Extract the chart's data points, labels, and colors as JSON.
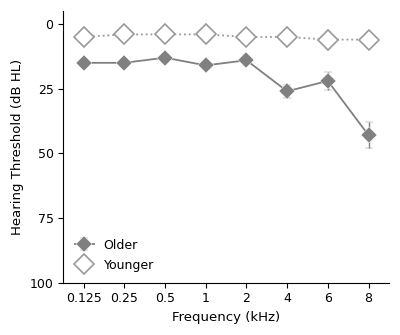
{
  "frequencies": [
    0.125,
    0.25,
    0.5,
    1,
    2,
    4,
    6,
    8
  ],
  "x_labels": [
    "0.125",
    "0.25",
    "0.5",
    "1",
    "2",
    "4",
    "6",
    "8"
  ],
  "older_mean": [
    15,
    15,
    13,
    16,
    14,
    26,
    22,
    43
  ],
  "older_err": [
    1.5,
    1.5,
    1.5,
    1.5,
    1.5,
    2.5,
    3.5,
    5
  ],
  "younger_mean": [
    5,
    4,
    4,
    4,
    5,
    5,
    6,
    6
  ],
  "younger_err": [
    2.5,
    1.5,
    2,
    2,
    1.5,
    2,
    2,
    2
  ],
  "older_color": "#808080",
  "younger_color": "#999999",
  "marker_size": 8,
  "line_width": 1.3,
  "ylabel": "Hearing Threshold (dB HL)",
  "xlabel": "Frequency (kHz)",
  "ylim": [
    100,
    -5
  ],
  "yticks": [
    0,
    25,
    50,
    75,
    100
  ],
  "legend_older": "Older",
  "legend_younger": "Younger",
  "background_color": "#ffffff",
  "capsize": 3
}
